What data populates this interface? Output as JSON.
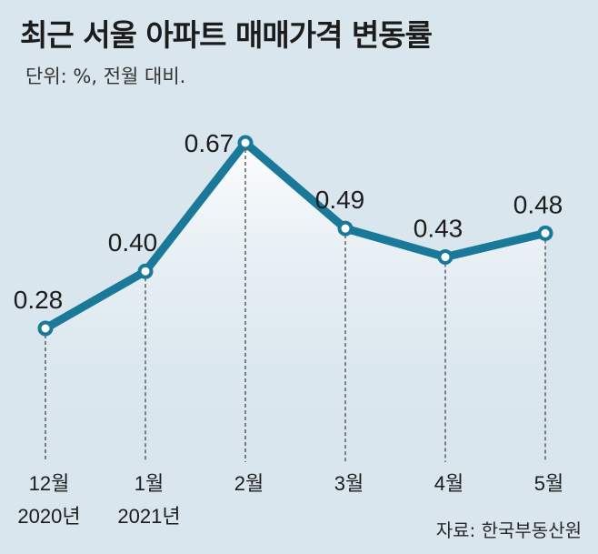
{
  "header": {
    "title": "최근 서울 아파트 매매가격 변동률",
    "subtitle": "단위: %, 전월 대비."
  },
  "footer": {
    "source": "자료: 한국부동산원"
  },
  "colors": {
    "background": "#d9e6ee",
    "line": "#1a7899",
    "area_top": "#ffffff"
  },
  "chart_data": {
    "type": "line",
    "categories": [
      [
        "12월",
        "2020년"
      ],
      [
        "1월",
        "2021년"
      ],
      [
        "2월"
      ],
      [
        "3월"
      ],
      [
        "4월"
      ],
      [
        "5월"
      ]
    ],
    "series": [
      {
        "values": [
          0.28,
          0.4,
          0.67,
          0.49,
          0.43,
          0.48
        ]
      }
    ],
    "data_labels": [
      "0.28",
      "0.40",
      "0.67",
      "0.49",
      "0.43",
      "0.48"
    ],
    "ylabel": "",
    "xlabel": "",
    "grid": false,
    "legend": "none"
  }
}
